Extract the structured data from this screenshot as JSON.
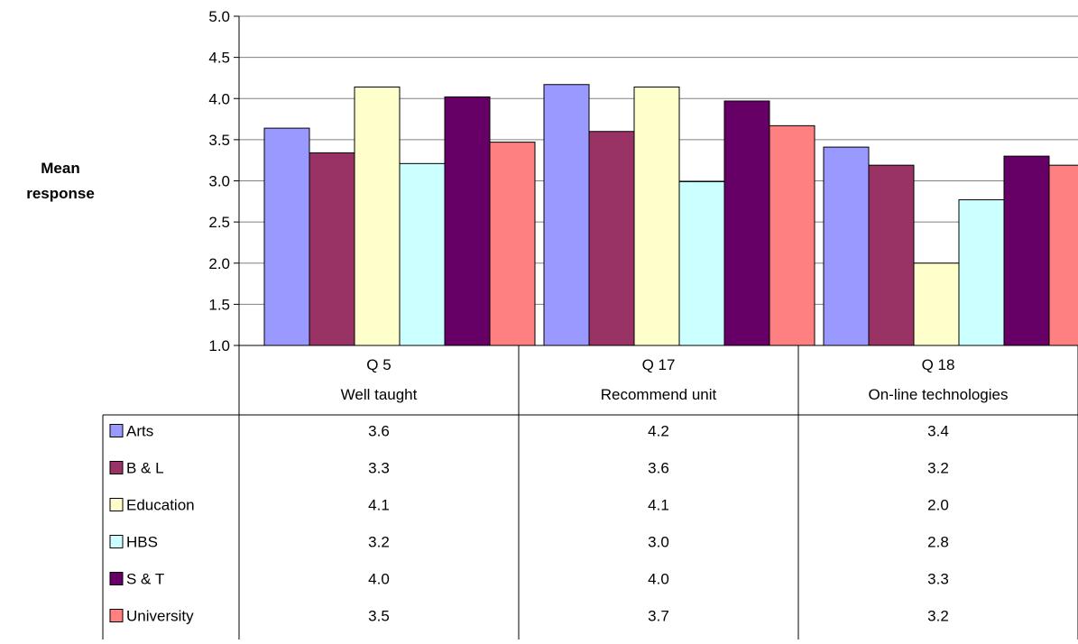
{
  "chart_data": {
    "type": "bar",
    "title": "",
    "xlabel": "",
    "ylabel": "Mean response",
    "ylabel_lines": [
      "Mean",
      "response"
    ],
    "ylim": [
      1.0,
      5.0
    ],
    "yticks": [
      "1.0",
      "1.5",
      "2.0",
      "2.5",
      "3.0",
      "3.5",
      "4.0",
      "4.5",
      "5.0"
    ],
    "grid": true,
    "legend": "data-table",
    "categories": [
      {
        "line1": "Q 5",
        "line2": "Well taught"
      },
      {
        "line1": "Q 17",
        "line2": "Recommend unit"
      },
      {
        "line1": "Q 18",
        "line2": "On-line technologies"
      }
    ],
    "series": [
      {
        "name": "Arts",
        "color": "#9999ff",
        "values": [
          3.64,
          4.17,
          3.41
        ],
        "labels": [
          "3.6",
          "4.2",
          "3.4"
        ]
      },
      {
        "name": "B & L",
        "color": "#993366",
        "values": [
          3.34,
          3.6,
          3.19
        ],
        "labels": [
          "3.3",
          "3.6",
          "3.2"
        ]
      },
      {
        "name": "Education",
        "color": "#ffffcc",
        "values": [
          4.14,
          4.14,
          2.0
        ],
        "labels": [
          "4.1",
          "4.1",
          "2.0"
        ]
      },
      {
        "name": "HBS",
        "color": "#ccffff",
        "values": [
          3.21,
          2.99,
          2.77
        ],
        "labels": [
          "3.2",
          "3.0",
          "2.8"
        ]
      },
      {
        "name": "S & T",
        "color": "#660066",
        "values": [
          4.02,
          3.97,
          3.3
        ],
        "labels": [
          "4.0",
          "4.0",
          "3.3"
        ]
      },
      {
        "name": "University",
        "color": "#ff8080",
        "values": [
          3.47,
          3.67,
          3.19
        ],
        "labels": [
          "3.5",
          "3.7",
          "3.2"
        ]
      }
    ]
  }
}
